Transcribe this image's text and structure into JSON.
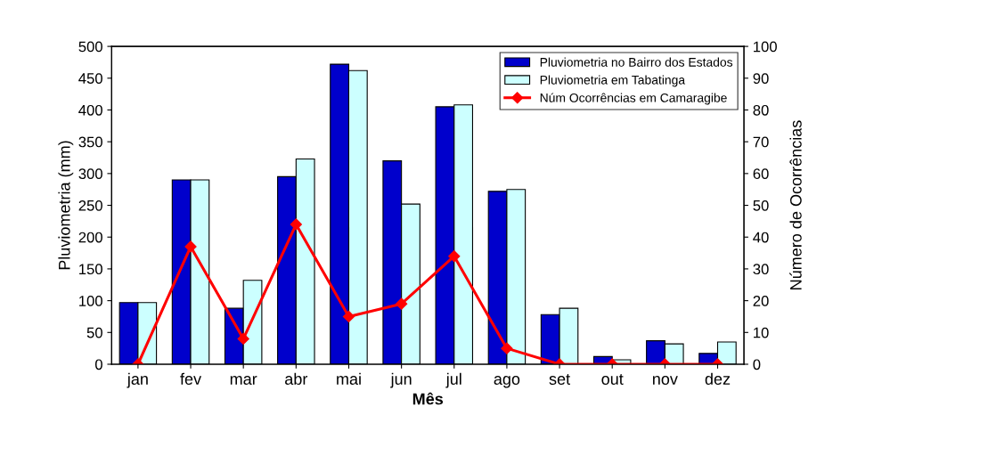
{
  "chart_data": {
    "type": "bar",
    "xlabel": "Mês",
    "ylabel": "Pluviometria (mm)",
    "y2label": "Número de Ocorrências",
    "categories": [
      "jan",
      "fev",
      "mar",
      "abr",
      "mai",
      "jun",
      "jul",
      "ago",
      "set",
      "out",
      "nov",
      "dez"
    ],
    "series": [
      {
        "name": "Pluviometria no Bairro dos Estados",
        "color": "#0000cc",
        "values": [
          97,
          290,
          88,
          295,
          472,
          320,
          405,
          272,
          78,
          12,
          37,
          17
        ]
      },
      {
        "name": "Pluviometria em Tabatinga",
        "color": "#ccffff",
        "values": [
          97,
          290,
          132,
          323,
          462,
          252,
          408,
          275,
          88,
          7,
          32,
          35
        ]
      },
      {
        "name": "Núm Ocorrências em Camaragibe",
        "type": "line",
        "axis": "y2",
        "color": "#ff0000",
        "marker": "diamond",
        "values": [
          0,
          37,
          8,
          44,
          15,
          19,
          34,
          5,
          0,
          0,
          0,
          0
        ]
      }
    ],
    "ylim": [
      0,
      500
    ],
    "yticks": [
      0,
      50,
      100,
      150,
      200,
      250,
      300,
      350,
      400,
      450,
      500
    ],
    "y2lim": [
      0,
      100
    ],
    "y2ticks": [
      0,
      10,
      20,
      30,
      40,
      50,
      60,
      70,
      80,
      90,
      100
    ],
    "grid": false,
    "legend": "top right"
  }
}
